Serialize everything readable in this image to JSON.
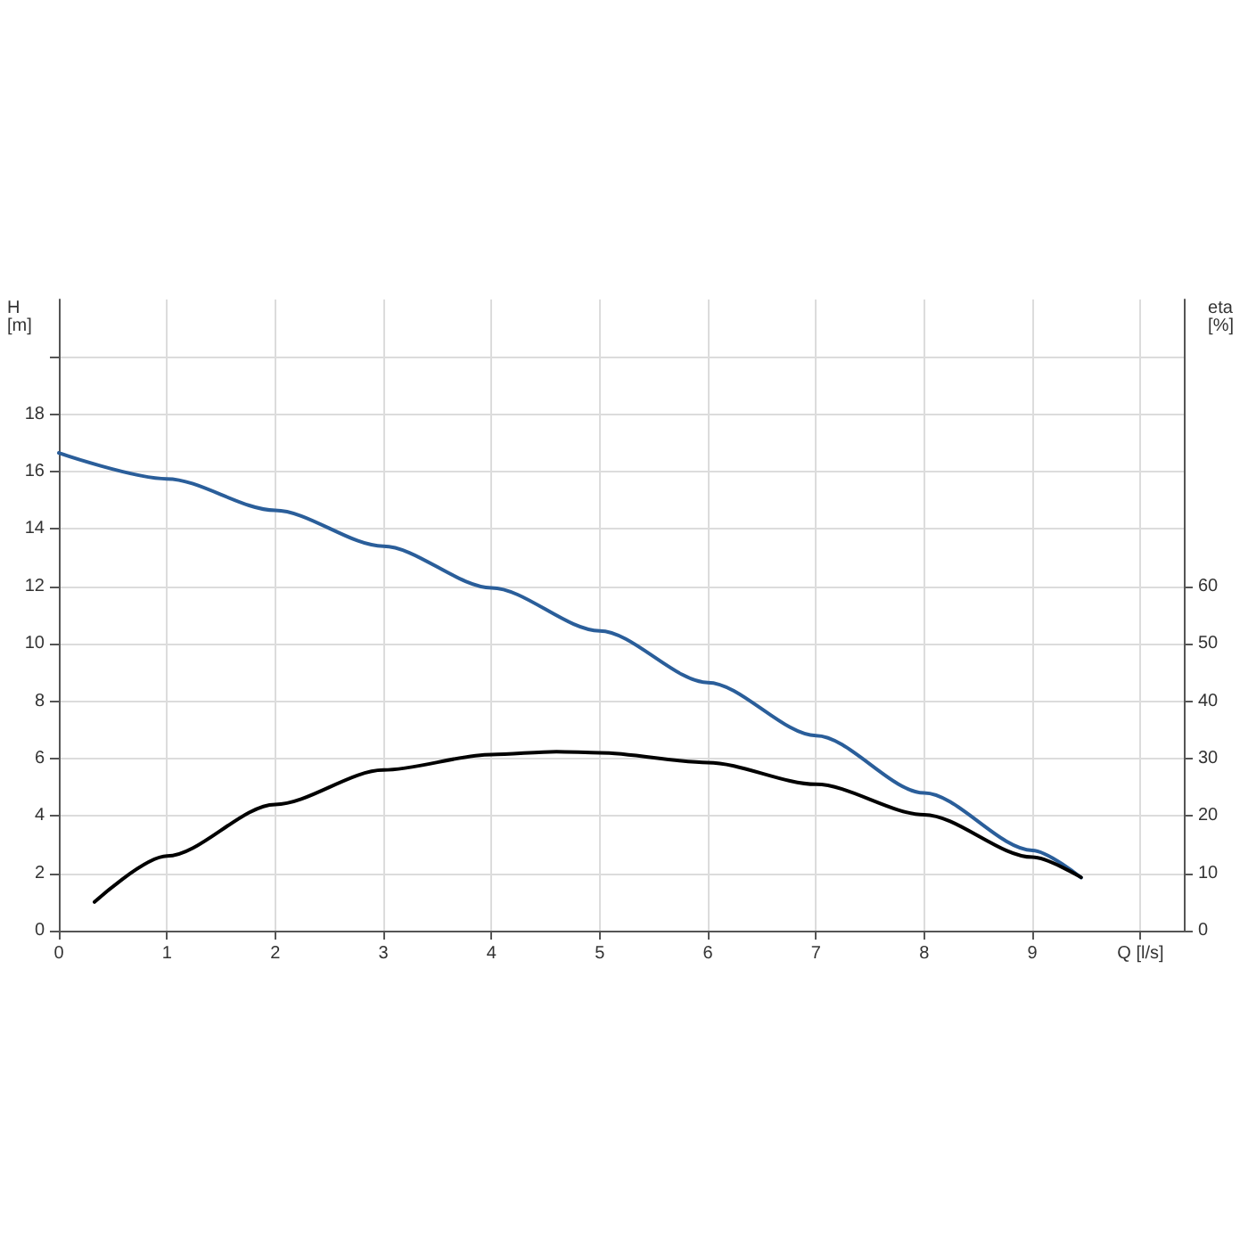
{
  "chart_data": {
    "type": "line",
    "ylabel": "H\n[m]",
    "y2label": "eta\n[%]",
    "xlim": [
      0,
      10.4
    ],
    "xticks": [
      0,
      1,
      2,
      3,
      4,
      5,
      6,
      7,
      8,
      9,
      {
        "value": 10,
        "label": "Q [l/s]"
      }
    ],
    "ylim": [
      0,
      22
    ],
    "yticks": [
      0,
      2,
      4,
      6,
      8,
      10,
      12,
      14,
      16,
      18,
      {
        "value": 20,
        "label": null
      }
    ],
    "y2lim": [
      0,
      110
    ],
    "y2ticks": [
      0,
      10,
      20,
      30,
      40,
      50,
      60
    ],
    "grid": true,
    "marker": "none",
    "line_style": "solid",
    "series": [
      {
        "color": "#2a5e9a",
        "x": [
          0,
          1,
          2,
          3,
          4,
          5,
          6,
          7,
          8,
          9,
          9.45
        ],
        "values": [
          16.65,
          15.75,
          14.65,
          13.4,
          11.95,
          10.45,
          8.65,
          6.8,
          4.8,
          2.8,
          1.85
        ]
      },
      {
        "color": "#000000",
        "axis": "y2",
        "x": [
          0.33,
          1,
          2,
          3,
          4,
          4.6,
          5,
          6,
          7,
          8,
          9,
          9.45
        ],
        "values": [
          5,
          13,
          22,
          28,
          30.7,
          31.2,
          31,
          29.3,
          25.5,
          20.2,
          12.8,
          9.3
        ]
      }
    ]
  }
}
